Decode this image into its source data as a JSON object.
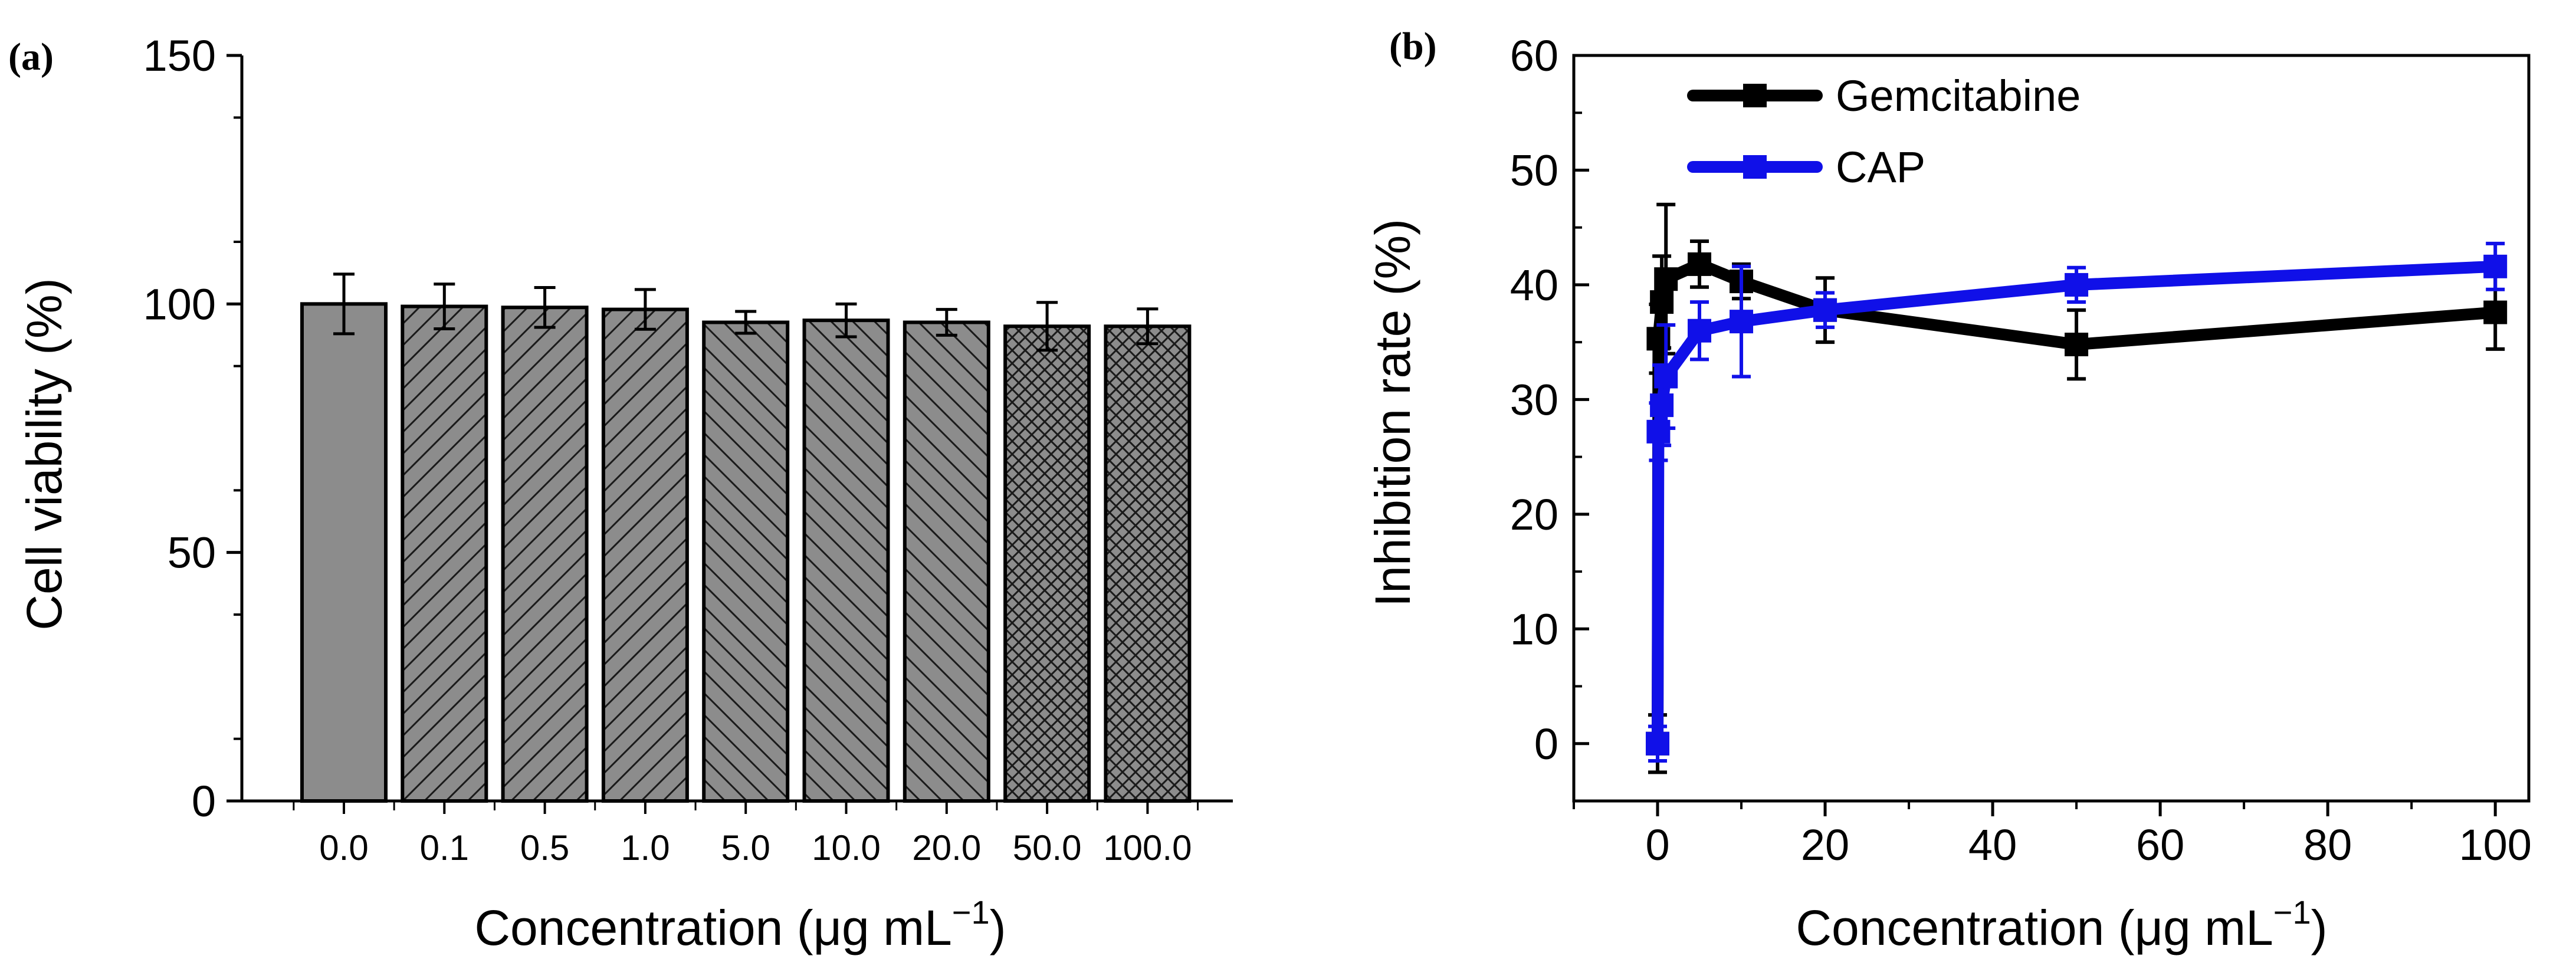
{
  "chart_data": [
    {
      "panel": "(a)",
      "type": "bar",
      "categories": [
        "0.0",
        "0.1",
        "0.5",
        "1.0",
        "5.0",
        "10.0",
        "20.0",
        "50.0",
        "100.0"
      ],
      "values": [
        100,
        99.5,
        99.3,
        98.9,
        96.3,
        96.7,
        96.3,
        95.5,
        95.5
      ],
      "errors": [
        6,
        4.5,
        4.0,
        4.0,
        2.2,
        3.3,
        2.6,
        4.8,
        3.5
      ],
      "patterns": [
        "solid",
        "diag-right",
        "diag-right",
        "diag-right",
        "diag-left",
        "diag-left",
        "diag-left",
        "cross",
        "cross"
      ],
      "title": "",
      "xlabel": "Concentration (μg mL",
      "xlabel_sup": "−1",
      "xlabel_end": ")",
      "ylabel": "Cell viability (%)",
      "ylim": [
        0,
        150
      ],
      "yticks": [
        "0",
        "50",
        "100",
        "150"
      ],
      "yticks_values": [
        0,
        50,
        100,
        150
      ],
      "bar_color": "#8c8c8c"
    },
    {
      "panel": "(b)",
      "type": "line",
      "title": "",
      "xlabel": "Concentration (μg mL",
      "xlabel_sup": "−1",
      "xlabel_end": ")",
      "ylabel": "Inhibition rate (%)",
      "xlim": [
        -10,
        104
      ],
      "ylim": [
        -5,
        60
      ],
      "xticks": [
        "0",
        "20",
        "40",
        "60",
        "80",
        "100"
      ],
      "xticks_values": [
        0,
        20,
        40,
        60,
        80,
        100
      ],
      "yticks": [
        "0",
        "10",
        "20",
        "30",
        "40",
        "50",
        "60"
      ],
      "yticks_values": [
        0,
        10,
        20,
        30,
        40,
        50,
        60
      ],
      "legend_position": "top-left",
      "series": [
        {
          "name": "Gemcitabine",
          "color": "#000000",
          "x": [
            0,
            0.1,
            0.5,
            1,
            5,
            10,
            20,
            50,
            100
          ],
          "y": [
            0,
            35.3,
            38.5,
            40.5,
            41.8,
            40.3,
            37.8,
            34.8,
            37.6
          ],
          "err": [
            2.5,
            3,
            4,
            6.5,
            2,
            1.5,
            2.8,
            3,
            3.2
          ]
        },
        {
          "name": "CAP",
          "color": "#1010e8",
          "x": [
            0,
            0.1,
            0.5,
            1,
            5,
            10,
            20,
            50,
            100
          ],
          "y": [
            0,
            27.2,
            29.5,
            32.0,
            36.0,
            36.8,
            37.8,
            40.0,
            41.6
          ],
          "err": [
            1.5,
            2.5,
            3.5,
            4.5,
            2.5,
            4.8,
            1.5,
            1.5,
            2.0
          ]
        }
      ]
    }
  ]
}
